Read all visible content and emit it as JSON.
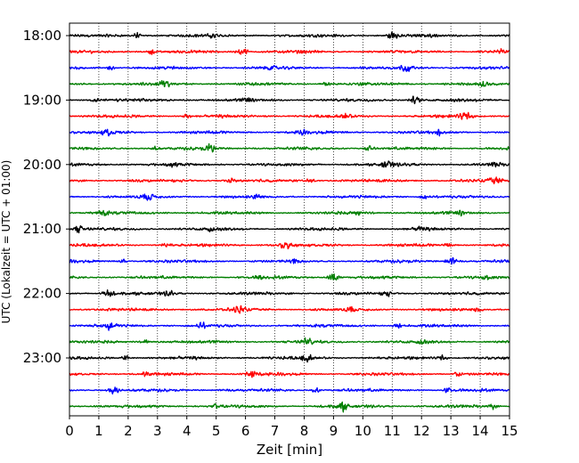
{
  "chart_data": {
    "type": "line",
    "title": "",
    "xlabel": "Zeit  [min]",
    "ylabel": "UTC (Lokalzeit = UTC + 01:00)",
    "xlim": [
      0,
      15
    ],
    "x_ticks": [
      "0",
      "1",
      "2",
      "3",
      "4",
      "5",
      "6",
      "7",
      "8",
      "9",
      "10",
      "11",
      "12",
      "13",
      "14",
      "15"
    ],
    "y_ticks": [
      {
        "label": "18:00",
        "row": 0
      },
      {
        "label": "19:00",
        "row": 4
      },
      {
        "label": "20:00",
        "row": 8
      },
      {
        "label": "21:00",
        "row": 12
      },
      {
        "label": "22:00",
        "row": 16
      },
      {
        "label": "23:00",
        "row": 20
      }
    ],
    "rows_per_hour": 4,
    "minutes_per_row": 15,
    "grid": "vertical dotted",
    "legend": "none",
    "trace_colors": [
      "#000000",
      "#ff0000",
      "#0000ff",
      "#007f00"
    ],
    "series": [
      {
        "start": "18:00",
        "events_min": [
          11.0,
          4.9,
          2.3
        ]
      },
      {
        "start": "18:15",
        "events_min": [
          5.9,
          14.7,
          2.8
        ]
      },
      {
        "start": "18:30",
        "events_min": [
          11.5,
          6.9,
          1.4
        ]
      },
      {
        "start": "18:45",
        "events_min": [
          3.2,
          8.7,
          14.1
        ]
      },
      {
        "start": "19:00",
        "events_min": [
          11.8,
          0.9,
          6.1
        ]
      },
      {
        "start": "19:15",
        "events_min": [
          13.5,
          4.0,
          9.4
        ]
      },
      {
        "start": "19:30",
        "events_min": [
          1.3,
          7.9,
          12.6
        ]
      },
      {
        "start": "19:45",
        "events_min": [
          4.8,
          10.2,
          2.9
        ]
      },
      {
        "start": "20:00",
        "events_min": [
          10.8,
          14.5,
          3.5
        ]
      },
      {
        "start": "20:15",
        "events_min": [
          14.5,
          5.5,
          8.2
        ]
      },
      {
        "start": "20:30",
        "events_min": [
          2.7,
          12.1,
          6.4
        ]
      },
      {
        "start": "20:45",
        "events_min": [
          1.1,
          9.8,
          13.3
        ]
      },
      {
        "start": "21:00",
        "events_min": [
          0.3,
          4.8,
          11.9
        ]
      },
      {
        "start": "21:15",
        "events_min": [
          7.4,
          3.3,
          12.9
        ]
      },
      {
        "start": "21:30",
        "events_min": [
          13.0,
          7.7,
          1.8
        ]
      },
      {
        "start": "21:45",
        "events_min": [
          9.0,
          6.5,
          14.2
        ]
      },
      {
        "start": "22:00",
        "events_min": [
          1.3,
          3.4,
          10.8
        ]
      },
      {
        "start": "22:15",
        "events_min": [
          5.8,
          13.9,
          9.6
        ]
      },
      {
        "start": "22:30",
        "events_min": [
          1.4,
          4.5,
          11.2
        ]
      },
      {
        "start": "22:45",
        "events_min": [
          8.1,
          12.0,
          2.6
        ]
      },
      {
        "start": "23:00",
        "events_min": [
          8.1,
          12.7,
          1.9
        ]
      },
      {
        "start": "23:15",
        "events_min": [
          6.2,
          2.6,
          13.2
        ]
      },
      {
        "start": "23:30",
        "events_min": [
          1.5,
          8.4,
          12.9
        ]
      },
      {
        "start": "23:45",
        "events_min": [
          9.3,
          14.4,
          5.0
        ]
      }
    ]
  }
}
